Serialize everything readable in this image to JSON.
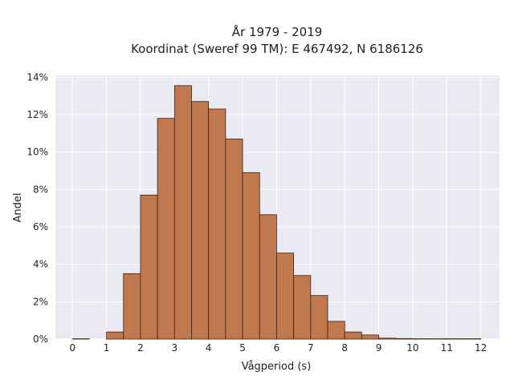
{
  "chart_data": {
    "type": "bar",
    "title": "År 1979 - 2019",
    "subtitle": "Koordinat (Sweref 99 TM): E 467492, N 6186126",
    "xlabel": "Vågperiod (s)",
    "ylabel": "Andel",
    "bin_width": 0.5,
    "x_ticks": [
      0,
      1,
      2,
      3,
      4,
      5,
      6,
      7,
      8,
      9,
      10,
      11,
      12
    ],
    "x_tick_labels": [
      "0",
      "1",
      "2",
      "3",
      "4",
      "5",
      "6",
      "7",
      "8",
      "9",
      "10",
      "11",
      "12"
    ],
    "y_ticks": [
      0,
      2,
      4,
      6,
      8,
      10,
      12,
      14
    ],
    "y_tick_labels": [
      "0%",
      "2%",
      "4%",
      "6%",
      "8%",
      "10%",
      "12%",
      "14%"
    ],
    "xlim": [
      -0.5,
      12.55
    ],
    "ylim": [
      0,
      14.1
    ],
    "bin_starts": [
      0,
      1,
      1.5,
      2,
      2.5,
      3,
      3.5,
      4,
      4.5,
      5,
      5.5,
      6,
      6.5,
      7,
      7.5,
      8,
      8.5,
      9,
      9.5,
      10,
      10.5,
      11,
      11.5
    ],
    "values": [
      0.02,
      0.38,
      3.5,
      7.7,
      11.8,
      13.55,
      12.7,
      12.3,
      10.7,
      8.9,
      6.65,
      4.6,
      3.4,
      2.33,
      0.95,
      0.38,
      0.22,
      0.05,
      0.03,
      0.02,
      0.02,
      0.02,
      0.02
    ],
    "grid": true,
    "colors": {
      "bar": "#c0784e",
      "bar_edge": "#3a2418",
      "plot_bg": "#eaeaf2",
      "grid": "#ffffff"
    }
  }
}
